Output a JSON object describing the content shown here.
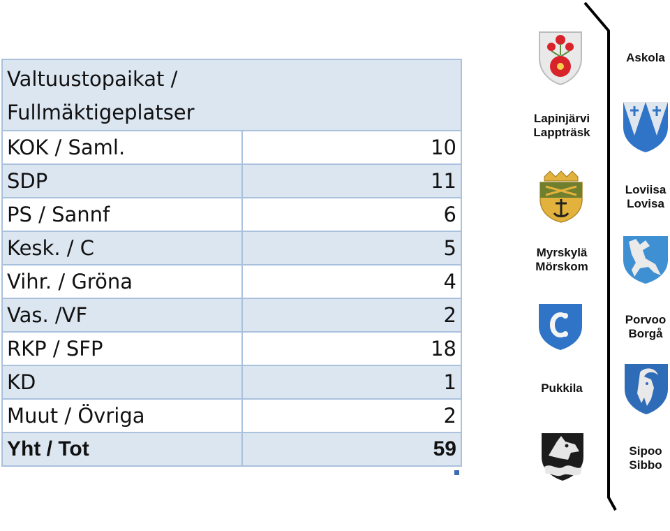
{
  "table": {
    "title": "Valtuustopaikat / Fullmäktigeplatser",
    "title_line1": "Valtuustopaikat /",
    "title_line2": "Fullmäktigeplatser",
    "rows": [
      {
        "party": "KOK / Saml.",
        "seats": "10"
      },
      {
        "party": "SDP",
        "seats": "11"
      },
      {
        "party": "PS / Sannf",
        "seats": "6"
      },
      {
        "party": "Kesk. / C",
        "seats": "5"
      },
      {
        "party": "Vihr. / Gröna",
        "seats": "4"
      },
      {
        "party": "Vas. /VF",
        "seats": "2"
      },
      {
        "party": "RKP / SFP",
        "seats": "18"
      },
      {
        "party": "KD",
        "seats": "1"
      },
      {
        "party": "Muut / Övriga",
        "seats": "2"
      }
    ],
    "total": {
      "party": "Yht / Tot",
      "seats": "59"
    }
  },
  "municipalities": {
    "askola": "Askola",
    "lapinjarvi_fi": "Lapinjärvi",
    "lapinjarvi_sv": "Lappträsk",
    "loviisa_fi": "Loviisa",
    "loviisa_sv": "Lovisa",
    "myrskyla_fi": "Myrskylä",
    "myrskyla_sv": "Mörskom",
    "porvoo_fi": "Porvoo",
    "porvoo_sv": "Borgå",
    "pukkila": "Pukkila",
    "sipoo_fi": "Sipoo",
    "sipoo_sv": "Sibbo"
  },
  "colors": {
    "table_border": "#a9c1dd",
    "table_fill": "#dce6f1",
    "crest_blue": "#2f74c7",
    "crest_red": "#e52a2a",
    "crest_gold": "#e8b84a"
  },
  "icons": [
    "askola-crest-icon",
    "lapinjarvi-crest-icon",
    "loviisa-crest-icon",
    "myrskyla-crest-icon",
    "porvoo-crest-icon",
    "pukkila-crest-icon",
    "sipoo-crest-icon"
  ]
}
